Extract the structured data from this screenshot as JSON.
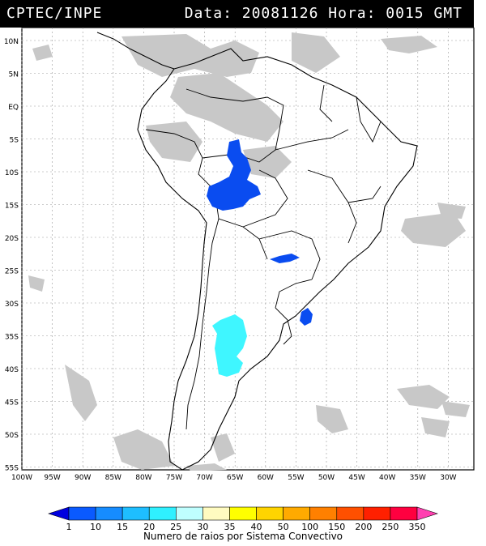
{
  "header": {
    "source": "CPTEC/INPE",
    "datetime": "Data: 20081126 Hora: 0015 GMT"
  },
  "map": {
    "lat_labels": [
      "10N",
      "5N",
      "EQ",
      "5S",
      "10S",
      "15S",
      "20S",
      "25S",
      "30S",
      "35S",
      "40S",
      "45S",
      "50S",
      "55S"
    ],
    "lon_labels": [
      "100W",
      "95W",
      "90W",
      "85W",
      "80W",
      "75W",
      "70W",
      "65W",
      "60W",
      "55W",
      "50W",
      "45W",
      "40W",
      "35W",
      "30W"
    ],
    "colors": {
      "cloud": "#c8c8c8",
      "dark_blue": "#0a4cf0",
      "cyan": "#3ff6ff",
      "coast": "#000000",
      "grid": "#9a9a9a"
    }
  },
  "legend": {
    "ticks": [
      "1",
      "10",
      "15",
      "20",
      "25",
      "30",
      "35",
      "40",
      "50",
      "100",
      "150",
      "200",
      "250",
      "350"
    ],
    "colors": [
      "#0000e0",
      "#0a5aff",
      "#168cff",
      "#1ebeff",
      "#2ff0ff",
      "#bfffff",
      "#fffbc0",
      "#ffff00",
      "#ffd400",
      "#ffaa00",
      "#ff8000",
      "#ff5000",
      "#ff2000",
      "#ff0040",
      "#ff40b0"
    ],
    "title": "Numero de raios por Sistema Convectivo"
  }
}
